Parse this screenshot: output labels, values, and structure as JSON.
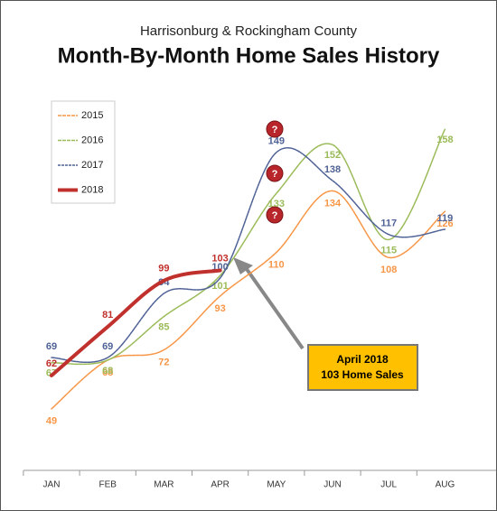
{
  "chart_data": {
    "type": "line",
    "subtitle": "Harrisonburg & Rockingham County",
    "title": "Month-By-Month Home Sales History",
    "categories": [
      "JAN",
      "FEB",
      "MAR",
      "APR",
      "MAY",
      "JUN",
      "JUL",
      "AUG"
    ],
    "ylim": [
      25,
      175
    ],
    "series": [
      {
        "name": "2015",
        "color": "#f79646",
        "values": [
          49,
          68,
          72,
          93,
          110,
          134,
          108,
          126
        ]
      },
      {
        "name": "2016",
        "color": "#9bbb59",
        "values": [
          67,
          68,
          85,
          101,
          133,
          152,
          115,
          158
        ]
      },
      {
        "name": "2017",
        "color": "#4f6296",
        "values": [
          69,
          69,
          94,
          100,
          149,
          138,
          117,
          119
        ]
      },
      {
        "name": "2018",
        "color": "#c0302c",
        "values": [
          62,
          81,
          99,
          103,
          null,
          null,
          null,
          null
        ]
      }
    ],
    "annotation": [
      "April 2018",
      "103 Home Sales"
    ],
    "markers": [
      "?",
      "?",
      "?"
    ]
  }
}
